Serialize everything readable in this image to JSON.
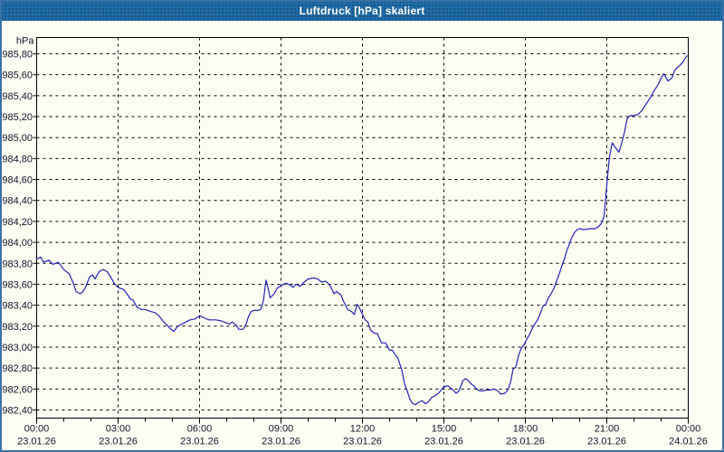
{
  "window": {
    "title": "Luftdruck [hPa] skaliert"
  },
  "colors": {
    "titlebar": "#1f6ba6",
    "titlebar_text": "#ffffff",
    "window_border": "#3a72a8",
    "background": "#fdfdf3",
    "grid": "#000000",
    "axis": "#000000",
    "label_text": "#14142b",
    "series_line": "#2222bb"
  },
  "chart_data": {
    "type": "line",
    "title": "Luftdruck [hPa] skaliert",
    "unit_label": "hPa",
    "grid": true,
    "legend_position": "none",
    "y_axis": {
      "min": 982.4,
      "max": 985.8,
      "step": 0.2,
      "tick_labels": [
        "985,80",
        "985,60",
        "985,40",
        "985,20",
        "985,00",
        "984,80",
        "984,60",
        "984,40",
        "984,20",
        "984,00",
        "983,80",
        "983,60",
        "983,40",
        "983,20",
        "983,00",
        "982,80",
        "982,60",
        "982,40"
      ]
    },
    "x_axis": {
      "span_hours": 24,
      "major_step_hours": 3,
      "minor_step_hours": 1,
      "tick_times": [
        "00:00",
        "03:00",
        "06:00",
        "09:00",
        "12:00",
        "15:00",
        "18:00",
        "21:00",
        "00:00"
      ],
      "tick_dates": [
        "23.01.26",
        "23.01.26",
        "23.01.26",
        "23.01.26",
        "23.01.26",
        "23.01.26",
        "23.01.26",
        "23.01.26",
        "24.01.26"
      ]
    },
    "series": [
      {
        "name": "Luftdruck",
        "unit": "hPa",
        "points": [
          [
            0.0,
            983.84
          ],
          [
            0.15,
            983.86
          ],
          [
            0.25,
            983.81
          ],
          [
            0.45,
            983.83
          ],
          [
            0.6,
            983.79
          ],
          [
            0.8,
            983.81
          ],
          [
            1.0,
            983.74
          ],
          [
            1.2,
            983.7
          ],
          [
            1.35,
            983.61
          ],
          [
            1.45,
            983.53
          ],
          [
            1.6,
            983.51
          ],
          [
            1.7,
            983.53
          ],
          [
            1.8,
            983.57
          ],
          [
            1.95,
            983.67
          ],
          [
            2.05,
            983.69
          ],
          [
            2.15,
            983.65
          ],
          [
            2.3,
            983.72
          ],
          [
            2.45,
            983.74
          ],
          [
            2.6,
            983.72
          ],
          [
            2.75,
            983.66
          ],
          [
            2.85,
            983.61
          ],
          [
            3.0,
            983.57
          ],
          [
            3.2,
            983.55
          ],
          [
            3.35,
            983.5
          ],
          [
            3.45,
            983.46
          ],
          [
            3.55,
            983.45
          ],
          [
            3.7,
            983.38
          ],
          [
            3.85,
            983.36
          ],
          [
            4.0,
            983.36
          ],
          [
            4.2,
            983.34
          ],
          [
            4.35,
            983.33
          ],
          [
            4.5,
            983.3
          ],
          [
            4.65,
            983.25
          ],
          [
            4.8,
            983.21
          ],
          [
            4.95,
            983.17
          ],
          [
            5.05,
            983.15
          ],
          [
            5.2,
            983.2
          ],
          [
            5.35,
            983.22
          ],
          [
            5.5,
            983.24
          ],
          [
            5.65,
            983.26
          ],
          [
            5.85,
            983.27
          ],
          [
            6.0,
            983.3
          ],
          [
            6.15,
            983.28
          ],
          [
            6.35,
            983.26
          ],
          [
            6.6,
            983.26
          ],
          [
            6.8,
            983.25
          ],
          [
            7.0,
            983.23
          ],
          [
            7.1,
            983.22
          ],
          [
            7.2,
            983.24
          ],
          [
            7.35,
            983.21
          ],
          [
            7.45,
            983.17
          ],
          [
            7.6,
            983.17
          ],
          [
            7.7,
            983.21
          ],
          [
            7.8,
            983.29
          ],
          [
            7.9,
            983.34
          ],
          [
            8.0,
            983.35
          ],
          [
            8.15,
            983.35
          ],
          [
            8.25,
            983.36
          ],
          [
            8.35,
            983.44
          ],
          [
            8.45,
            983.64
          ],
          [
            8.5,
            983.59
          ],
          [
            8.6,
            983.47
          ],
          [
            8.75,
            983.51
          ],
          [
            8.85,
            983.56
          ],
          [
            8.95,
            983.58
          ],
          [
            9.1,
            983.6
          ],
          [
            9.2,
            983.61
          ],
          [
            9.35,
            983.59
          ],
          [
            9.45,
            983.57
          ],
          [
            9.55,
            983.6
          ],
          [
            9.7,
            983.58
          ],
          [
            9.85,
            983.62
          ],
          [
            10.0,
            983.65
          ],
          [
            10.2,
            983.66
          ],
          [
            10.35,
            983.65
          ],
          [
            10.5,
            983.62
          ],
          [
            10.65,
            983.63
          ],
          [
            10.8,
            983.59
          ],
          [
            10.95,
            983.51
          ],
          [
            11.05,
            983.53
          ],
          [
            11.2,
            983.5
          ],
          [
            11.3,
            983.44
          ],
          [
            11.45,
            983.36
          ],
          [
            11.6,
            983.34
          ],
          [
            11.7,
            983.31
          ],
          [
            11.8,
            983.41
          ],
          [
            11.9,
            983.37
          ],
          [
            12.0,
            983.31
          ],
          [
            12.1,
            983.26
          ],
          [
            12.2,
            983.24
          ],
          [
            12.3,
            983.16
          ],
          [
            12.45,
            983.13
          ],
          [
            12.55,
            983.13
          ],
          [
            12.7,
            983.04
          ],
          [
            12.85,
            983.04
          ],
          [
            13.0,
            982.97
          ],
          [
            13.1,
            982.97
          ],
          [
            13.2,
            982.93
          ],
          [
            13.3,
            982.9
          ],
          [
            13.45,
            982.78
          ],
          [
            13.55,
            982.65
          ],
          [
            13.65,
            982.58
          ],
          [
            13.75,
            982.5
          ],
          [
            13.85,
            982.46
          ],
          [
            13.95,
            982.45
          ],
          [
            14.05,
            982.47
          ],
          [
            14.2,
            982.49
          ],
          [
            14.3,
            982.46
          ],
          [
            14.4,
            982.47
          ],
          [
            14.55,
            982.52
          ],
          [
            14.65,
            982.53
          ],
          [
            14.8,
            982.56
          ],
          [
            14.9,
            982.59
          ],
          [
            15.0,
            982.62
          ],
          [
            15.15,
            982.63
          ],
          [
            15.3,
            982.6
          ],
          [
            15.45,
            982.56
          ],
          [
            15.55,
            982.58
          ],
          [
            15.7,
            982.68
          ],
          [
            15.8,
            982.7
          ],
          [
            15.9,
            982.68
          ],
          [
            16.0,
            982.65
          ],
          [
            16.1,
            982.63
          ],
          [
            16.25,
            982.59
          ],
          [
            16.4,
            982.58
          ],
          [
            16.55,
            982.59
          ],
          [
            16.7,
            982.59
          ],
          [
            16.85,
            982.6
          ],
          [
            17.0,
            982.58
          ],
          [
            17.1,
            982.55
          ],
          [
            17.25,
            982.56
          ],
          [
            17.35,
            982.59
          ],
          [
            17.45,
            982.66
          ],
          [
            17.55,
            982.79
          ],
          [
            17.65,
            982.81
          ],
          [
            17.75,
            982.92
          ],
          [
            17.85,
            982.99
          ],
          [
            17.95,
            983.02
          ],
          [
            18.0,
            983.05
          ],
          [
            18.15,
            983.12
          ],
          [
            18.3,
            983.2
          ],
          [
            18.45,
            983.26
          ],
          [
            18.55,
            983.32
          ],
          [
            18.65,
            983.39
          ],
          [
            18.75,
            983.41
          ],
          [
            18.85,
            983.47
          ],
          [
            18.95,
            983.51
          ],
          [
            19.05,
            983.56
          ],
          [
            19.15,
            983.63
          ],
          [
            19.25,
            983.7
          ],
          [
            19.35,
            983.78
          ],
          [
            19.45,
            983.85
          ],
          [
            19.5,
            983.9
          ],
          [
            19.6,
            983.97
          ],
          [
            19.7,
            984.04
          ],
          [
            19.8,
            984.09
          ],
          [
            19.9,
            984.12
          ],
          [
            20.0,
            984.13
          ],
          [
            20.15,
            984.12
          ],
          [
            20.35,
            984.13
          ],
          [
            20.55,
            984.13
          ],
          [
            20.7,
            984.15
          ],
          [
            20.8,
            984.18
          ],
          [
            20.9,
            984.25
          ],
          [
            21.0,
            984.55
          ],
          [
            21.1,
            984.82
          ],
          [
            21.2,
            984.95
          ],
          [
            21.3,
            984.91
          ],
          [
            21.45,
            984.86
          ],
          [
            21.55,
            984.95
          ],
          [
            21.65,
            985.05
          ],
          [
            21.75,
            985.18
          ],
          [
            21.85,
            985.21
          ],
          [
            22.0,
            985.21
          ],
          [
            22.15,
            985.22
          ],
          [
            22.3,
            985.26
          ],
          [
            22.45,
            985.32
          ],
          [
            22.6,
            985.38
          ],
          [
            22.75,
            985.45
          ],
          [
            22.9,
            985.51
          ],
          [
            23.0,
            985.57
          ],
          [
            23.1,
            985.61
          ],
          [
            23.25,
            985.54
          ],
          [
            23.4,
            985.57
          ],
          [
            23.5,
            985.64
          ],
          [
            23.6,
            985.67
          ],
          [
            23.7,
            985.69
          ],
          [
            23.8,
            985.72
          ],
          [
            23.9,
            985.76
          ],
          [
            23.95,
            985.78
          ]
        ]
      }
    ]
  }
}
